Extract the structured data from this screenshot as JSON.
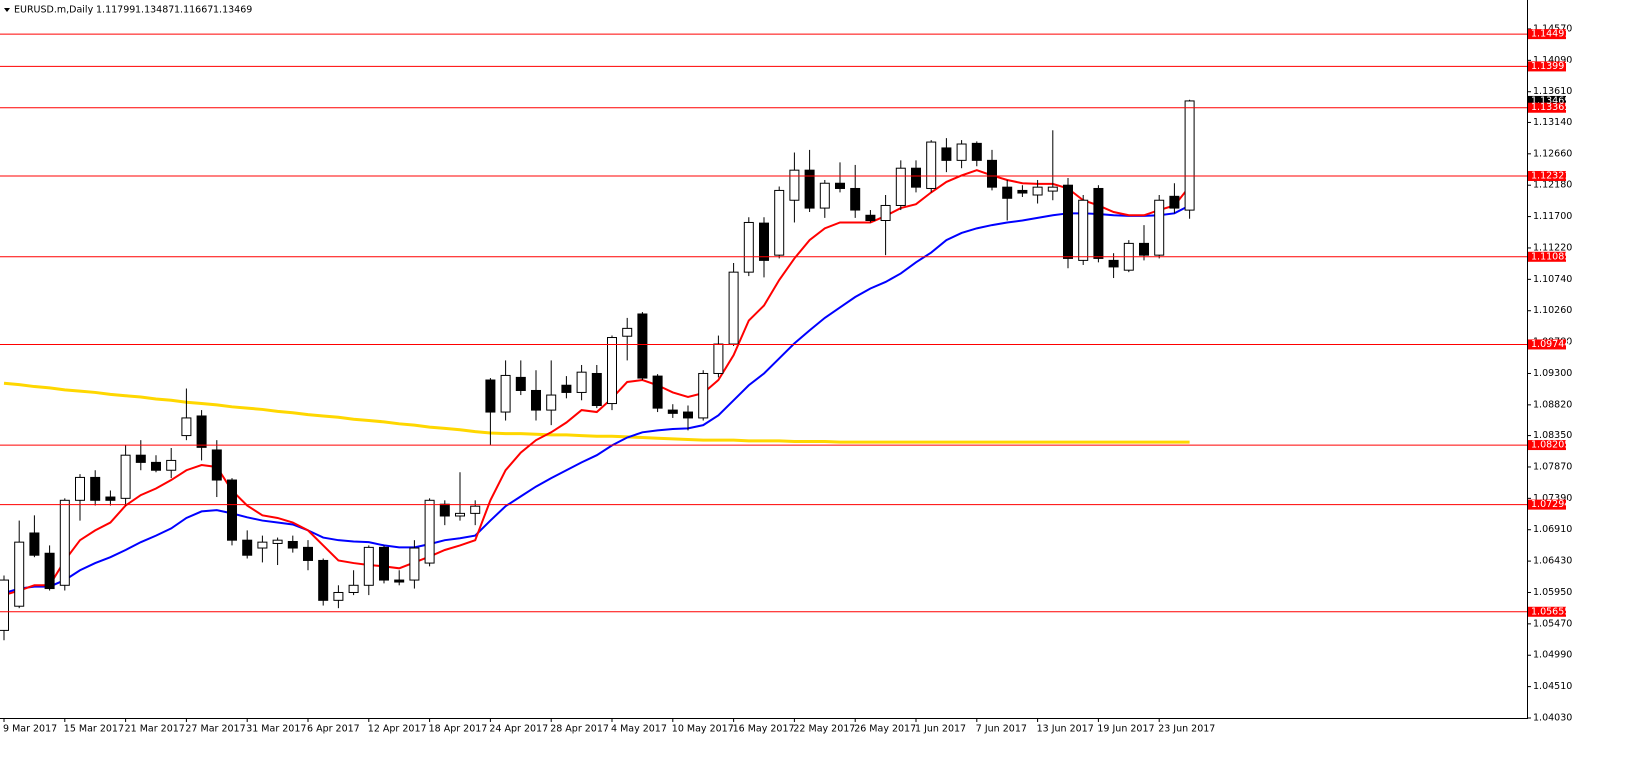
{
  "chart_data": {
    "type": "candlestick",
    "title": "EURUSD.m,Daily",
    "categories": [
      "9 Mar 2017",
      null,
      null,
      null,
      "15 Mar 2017",
      null,
      null,
      null,
      "21 Mar 2017",
      null,
      null,
      null,
      "27 Mar 2017",
      null,
      null,
      null,
      "31 Mar 2017",
      null,
      null,
      null,
      "6 Apr 2017",
      null,
      null,
      null,
      "12 Apr 2017",
      null,
      null,
      null,
      "18 Apr 2017",
      null,
      null,
      null,
      "24 Apr 2017",
      null,
      null,
      null,
      "28 Apr 2017",
      null,
      null,
      null,
      "4 May 2017",
      null,
      null,
      null,
      "10 May 2017",
      null,
      null,
      null,
      "16 May 2017",
      null,
      null,
      null,
      "22 May 2017",
      null,
      null,
      null,
      "26 May 2017",
      null,
      null,
      null,
      "1 Jun 2017",
      null,
      null,
      null,
      "7 Jun 2017",
      null,
      null,
      null,
      "13 Jun 2017",
      null,
      null,
      null,
      "19 Jun 2017",
      null,
      null,
      null,
      "23 Jun 2017",
      null,
      null
    ],
    "open": [
      1.0537,
      1.0574,
      1.0686,
      1.0655,
      1.0606,
      1.0736,
      1.0771,
      1.0741,
      1.0739,
      1.0805,
      1.0794,
      1.0782,
      1.0835,
      1.0865,
      1.0813,
      1.0767,
      1.0675,
      1.0663,
      1.067,
      1.0673,
      1.0664,
      1.0644,
      1.0583,
      1.0595,
      1.0606,
      1.0664,
      1.0614,
      1.0614,
      1.064,
      1.073,
      1.0712,
      1.0716,
      1.092,
      1.0871,
      1.0924,
      1.0904,
      1.0874,
      1.0912,
      1.0901,
      1.093,
      1.0884,
      1.0987,
      1.1021,
      1.0926,
      1.0874,
      1.0871,
      1.0862,
      1.093,
      1.0975,
      1.1085,
      1.116,
      1.1111,
      1.1195,
      1.1241,
      1.1183,
      1.1221,
      1.1213,
      1.1172,
      1.1164,
      1.1187,
      1.1244,
      1.1213,
      1.1275,
      1.1256,
      1.1282,
      1.1256,
      1.1215,
      1.121,
      1.1203,
      1.1209,
      1.1218,
      1.1103,
      1.1213,
      1.1103,
      1.1088,
      1.1129,
      1.1111,
      1.1201,
      1.11799
    ],
    "high": [
      1.0621,
      1.0705,
      1.0713,
      1.0667,
      1.0739,
      1.0776,
      1.0782,
      1.0751,
      1.082,
      1.0828,
      1.0805,
      1.0816,
      1.0907,
      1.0874,
      1.0828,
      1.077,
      1.069,
      1.0682,
      1.0679,
      1.0682,
      1.0675,
      1.0647,
      1.0606,
      1.0629,
      1.0667,
      1.0667,
      1.0629,
      1.0675,
      1.0739,
      1.0736,
      1.0779,
      1.0736,
      1.0923,
      1.095,
      1.095,
      1.0935,
      1.095,
      1.0926,
      1.0943,
      1.0943,
      1.0988,
      1.1015,
      1.1024,
      1.0929,
      1.0883,
      1.0881,
      1.0935,
      1.0988,
      1.1099,
      1.1169,
      1.1169,
      1.1216,
      1.1268,
      1.1272,
      1.1226,
      1.1253,
      1.1249,
      1.118,
      1.1203,
      1.1256,
      1.1256,
      1.1287,
      1.129,
      1.1287,
      1.1285,
      1.1272,
      1.1226,
      1.1218,
      1.1226,
      1.1302,
      1.1229,
      1.1203,
      1.1218,
      1.1114,
      1.1134,
      1.1157,
      1.1203,
      1.1221,
      1.13487
    ],
    "low": [
      1.0522,
      1.0571,
      1.0649,
      1.0598,
      1.0598,
      1.0705,
      1.0728,
      1.0728,
      1.0728,
      1.0782,
      1.0779,
      1.077,
      1.0828,
      1.0797,
      1.0741,
      1.0667,
      1.0647,
      1.0641,
      1.0637,
      1.0656,
      1.0629,
      1.0575,
      1.0571,
      1.0591,
      1.0591,
      1.0609,
      1.0606,
      1.0601,
      1.0635,
      1.0698,
      1.0705,
      1.0698,
      1.082,
      1.0858,
      1.0897,
      1.0858,
      1.0851,
      1.0892,
      1.0889,
      1.0877,
      1.0874,
      1.095,
      1.092,
      1.0871,
      1.0862,
      1.0843,
      1.0858,
      1.0924,
      1.0972,
      1.1079,
      1.1077,
      1.1106,
      1.1161,
      1.1177,
      1.1168,
      1.1207,
      1.1168,
      1.1161,
      1.1111,
      1.118,
      1.1207,
      1.1207,
      1.1238,
      1.1244,
      1.1247,
      1.121,
      1.1164,
      1.12,
      1.119,
      1.1195,
      1.1091,
      1.1096,
      1.11,
      1.1076,
      1.1085,
      1.1103,
      1.1106,
      1.1175,
      1.11667
    ],
    "close": [
      1.0614,
      1.0672,
      1.0652,
      1.0601,
      1.0736,
      1.0771,
      1.0736,
      1.0736,
      1.0805,
      1.0794,
      1.0782,
      1.0797,
      1.0862,
      1.0817,
      1.0767,
      1.0675,
      1.0652,
      1.0672,
      1.0675,
      1.0663,
      1.0644,
      1.0583,
      1.0595,
      1.0606,
      1.0664,
      1.0614,
      1.0611,
      1.0663,
      1.0736,
      1.0712,
      1.0716,
      1.0727,
      1.0871,
      1.0927,
      1.0904,
      1.0874,
      1.0897,
      1.0901,
      1.0932,
      1.0881,
      1.0985,
      1.0999,
      1.0923,
      1.0877,
      1.0869,
      1.0862,
      1.093,
      1.0975,
      1.1085,
      1.1161,
      1.1103,
      1.121,
      1.1241,
      1.1183,
      1.1221,
      1.1213,
      1.118,
      1.1164,
      1.1187,
      1.1244,
      1.1215,
      1.1284,
      1.1256,
      1.1281,
      1.1256,
      1.1215,
      1.1198,
      1.1206,
      1.1215,
      1.1215,
      1.1106,
      1.1195,
      1.1106,
      1.1093,
      1.1129,
      1.1111,
      1.1195,
      1.1183,
      1.13469
    ],
    "up_color": "#ffffff",
    "down_color": "#000000",
    "series": [
      {
        "color": "#ffd700",
        "values": [
          1.0915,
          1.0913,
          1.091,
          1.0908,
          1.0905,
          1.0903,
          1.0901,
          1.0898,
          1.0896,
          1.0894,
          1.0891,
          1.0889,
          1.0886,
          1.0884,
          1.0882,
          1.0879,
          1.0877,
          1.0875,
          1.0872,
          1.087,
          1.0867,
          1.0865,
          1.0863,
          1.086,
          1.0858,
          1.0856,
          1.0853,
          1.0851,
          1.0848,
          1.0846,
          1.0844,
          1.0841,
          1.0839,
          1.0838,
          1.0838,
          1.0837,
          1.0836,
          1.0836,
          1.0835,
          1.0834,
          1.0834,
          1.0833,
          1.0832,
          1.0831,
          1.083,
          1.0829,
          1.0828,
          1.0828,
          1.0828,
          1.0827,
          1.0827,
          1.0827,
          1.0826,
          1.0826,
          1.0826,
          1.0825,
          1.0825,
          1.0825,
          1.0825,
          1.0825,
          1.0825,
          1.0825,
          1.0825,
          1.0825,
          1.0825,
          1.0825,
          1.0825,
          1.0825,
          1.0825,
          1.0825,
          1.0825,
          1.0825,
          1.0825,
          1.0825,
          1.0825,
          1.0825,
          1.0825,
          1.0825,
          1.0825
        ]
      },
      {
        "color": "#0000ff",
        "values": [
          1.0594,
          1.0601,
          1.0604,
          1.0604,
          1.0614,
          1.0629,
          1.064,
          1.0649,
          1.066,
          1.0672,
          1.0682,
          1.0693,
          1.0709,
          1.0719,
          1.0721,
          1.0716,
          1.071,
          1.0705,
          1.0702,
          1.0699,
          1.069,
          1.0679,
          1.0675,
          1.0673,
          1.0672,
          1.0667,
          1.0664,
          1.0664,
          1.0669,
          1.0675,
          1.0678,
          1.0682,
          1.0705,
          1.0727,
          1.0742,
          1.0757,
          1.077,
          1.0782,
          1.0794,
          1.0805,
          1.082,
          1.0832,
          1.084,
          1.0843,
          1.0845,
          1.0846,
          1.0851,
          1.0866,
          1.0889,
          1.0912,
          1.093,
          1.0953,
          1.0976,
          1.0996,
          1.1015,
          1.1031,
          1.1047,
          1.106,
          1.107,
          1.1083,
          1.11,
          1.1115,
          1.1134,
          1.1145,
          1.1152,
          1.1157,
          1.1161,
          1.1164,
          1.1168,
          1.1172,
          1.1175,
          1.1175,
          1.1174,
          1.1172,
          1.1171,
          1.1171,
          1.1172,
          1.1175,
          1.1187
        ]
      },
      {
        "color": "#ff0000",
        "values": [
          1.0591,
          1.0598,
          1.0606,
          1.0606,
          1.0644,
          1.0675,
          1.069,
          1.0702,
          1.0728,
          1.0744,
          1.0754,
          1.0767,
          1.0782,
          1.079,
          1.0787,
          1.0751,
          1.0728,
          1.0713,
          1.0709,
          1.0702,
          1.069,
          1.0667,
          1.0644,
          1.064,
          1.0637,
          1.0635,
          1.0632,
          1.0641,
          1.065,
          1.066,
          1.0667,
          1.0675,
          1.0736,
          1.0782,
          1.0809,
          1.0828,
          1.084,
          1.0855,
          1.0874,
          1.0871,
          1.0892,
          1.0917,
          1.092,
          1.0912,
          1.0901,
          1.0894,
          1.09,
          1.092,
          1.0958,
          1.1011,
          1.1034,
          1.1073,
          1.1106,
          1.1134,
          1.1152,
          1.1161,
          1.1161,
          1.1161,
          1.1171,
          1.1183,
          1.1189,
          1.1207,
          1.1223,
          1.1233,
          1.1241,
          1.1233,
          1.1226,
          1.1221,
          1.122,
          1.122,
          1.1213,
          1.1195,
          1.1187,
          1.1177,
          1.1172,
          1.1172,
          1.118,
          1.1187,
          1.1216
        ]
      }
    ],
    "levels": [
      1.14491,
      1.13997,
      1.13365,
      1.12321,
      1.11085,
      1.09744,
      1.08205,
      1.07294,
      1.05655
    ],
    "level_color": "#ff0000",
    "ylim": [
      1.0403,
      1.1486
    ],
    "yticks": [
      {
        "value": 1.0403,
        "label": "1.04030"
      },
      {
        "value": 1.0451,
        "label": "1.04510"
      },
      {
        "value": 1.0499,
        "label": "1.04990"
      },
      {
        "value": 1.0547,
        "label": "1.05470"
      },
      {
        "value": 1.0595,
        "label": "1.05950"
      },
      {
        "value": 1.0643,
        "label": "1.06430"
      },
      {
        "value": 1.0691,
        "label": "1.06910"
      },
      {
        "value": 1.0739,
        "label": "1.07390"
      },
      {
        "value": 1.0787,
        "label": "1.07870"
      },
      {
        "value": 1.0835,
        "label": "1.08350"
      },
      {
        "value": 1.0882,
        "label": "1.08820"
      },
      {
        "value": 1.093,
        "label": "1.09300"
      },
      {
        "value": 1.0978,
        "label": "1.09780"
      },
      {
        "value": 1.1026,
        "label": "1.10260"
      },
      {
        "value": 1.1074,
        "label": "1.10740"
      },
      {
        "value": 1.1122,
        "label": "1.11220"
      },
      {
        "value": 1.117,
        "label": "1.11700"
      },
      {
        "value": 1.1218,
        "label": "1.12180"
      },
      {
        "value": 1.1266,
        "label": "1.12660"
      },
      {
        "value": 1.1314,
        "label": "1.13140"
      },
      {
        "value": 1.1361,
        "label": "1.13610"
      },
      {
        "value": 1.1409,
        "label": "1.14090"
      },
      {
        "value": 1.1457,
        "label": "1.14570"
      }
    ],
    "grid": false
  }
}
